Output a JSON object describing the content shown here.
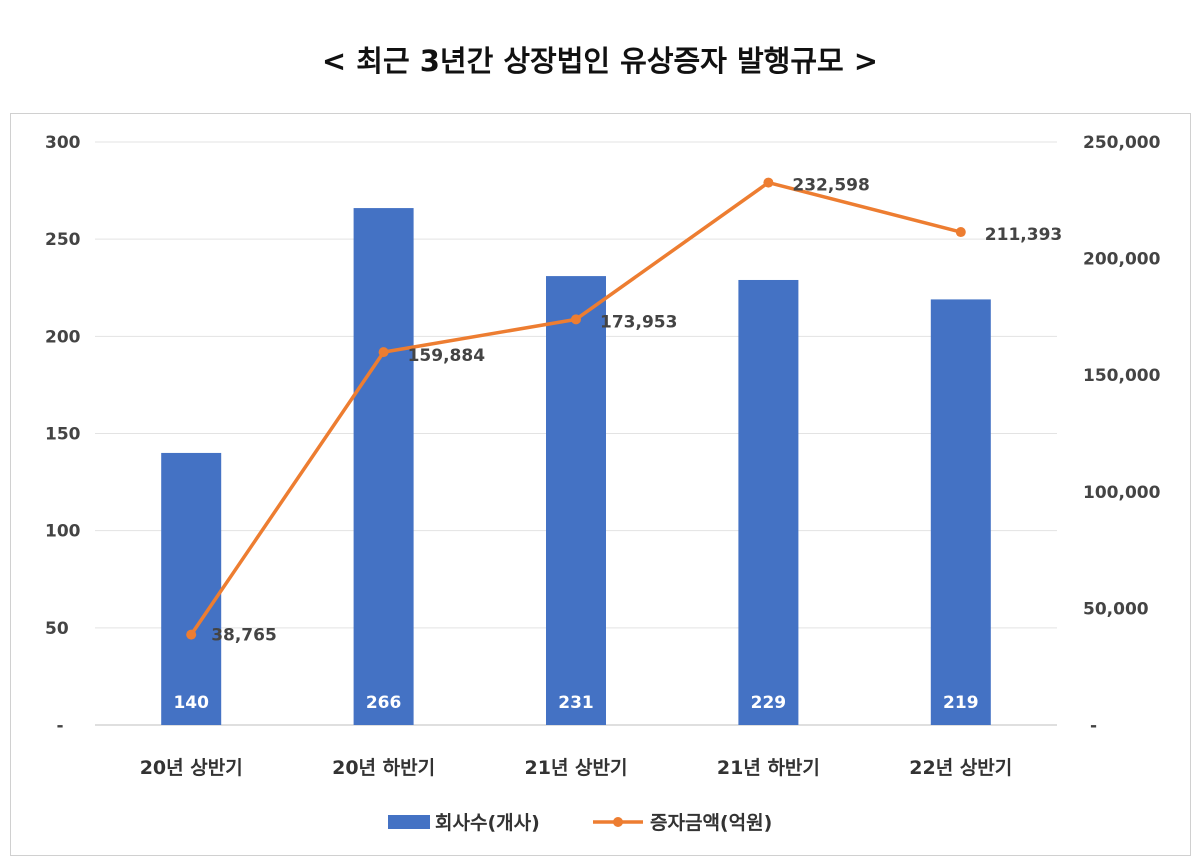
{
  "chart_data": {
    "type": "bar+line",
    "title": "< 최근 3년간 상장법인 유상증자 발행규모 >",
    "categories": [
      "20년 상반기",
      "20년 하반기",
      "21년 상반기",
      "21년 하반기",
      "22년 상반기"
    ],
    "series": [
      {
        "name": "회사수(개사)",
        "type": "bar",
        "axis": "left",
        "values": [
          140,
          266,
          231,
          229,
          219
        ],
        "color": "#4472C4"
      },
      {
        "name": "증자금액(억원)",
        "type": "line",
        "axis": "right",
        "values": [
          38765,
          159884,
          173953,
          232598,
          211393
        ],
        "color": "#ED7D31"
      }
    ],
    "left_axis": {
      "ylim": [
        0,
        300
      ],
      "ticks": [
        "-",
        "50",
        "100",
        "150",
        "200",
        "250",
        "300"
      ]
    },
    "right_axis": {
      "ylim": [
        0,
        250000
      ],
      "ticks": [
        "-",
        "50,000",
        "100,000",
        "150,000",
        "200,000",
        "250,000"
      ]
    },
    "bar_labels": [
      "140",
      "266",
      "231",
      "229",
      "219"
    ],
    "line_labels": [
      "38,765",
      "159,884",
      "173,953",
      "232,598",
      "211,393"
    ],
    "grid": true,
    "legend": "bottom"
  }
}
